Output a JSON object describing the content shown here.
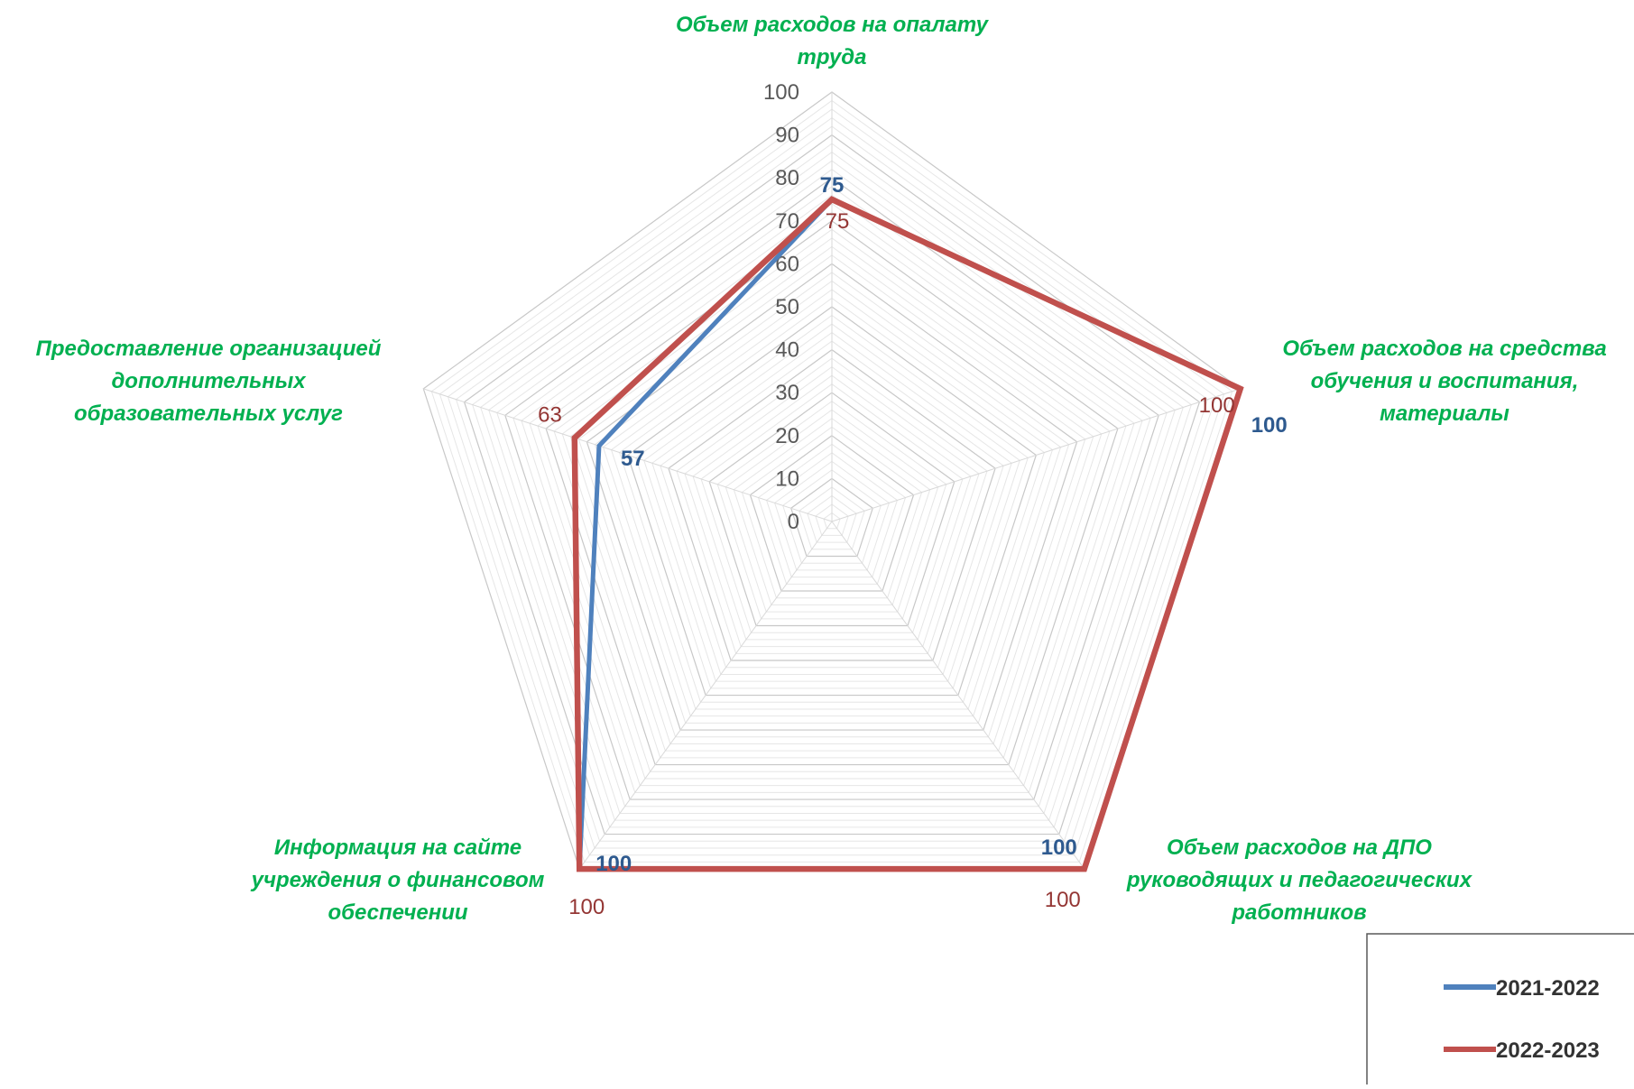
{
  "chart_data": {
    "type": "radar",
    "title": "",
    "categories": [
      [
        "Объем расходов на опалату",
        "труда"
      ],
      [
        "Объем расходов на средства",
        "обучения и воспитания,",
        "материалы"
      ],
      [
        "Объем расходов на ДПО",
        "руководящих и педагогических",
        "работников"
      ],
      [
        "Информация на сайте",
        "учреждения о финансовом",
        "обеспечении"
      ],
      [
        "Предоставление организацией",
        "дополнительных",
        "образовательных услуг"
      ]
    ],
    "series": [
      {
        "name": "2021-2022",
        "values": [
          75,
          100,
          100,
          100,
          57
        ],
        "color": "#4f81bd",
        "label_color": "#2e5a8f",
        "labels_bold": true
      },
      {
        "name": "2022-2023",
        "values": [
          75,
          100,
          100,
          100,
          63
        ],
        "color": "#c0504d",
        "label_color": "#943634",
        "labels_bold": false
      }
    ],
    "r_ticks": [
      "0",
      "10",
      "20",
      "30",
      "40",
      "50",
      "60",
      "70",
      "80",
      "90",
      "100"
    ],
    "r_range": [
      0,
      100
    ],
    "grid": true,
    "legend_position": "bottom-right",
    "category_label_color": "#00b050"
  }
}
